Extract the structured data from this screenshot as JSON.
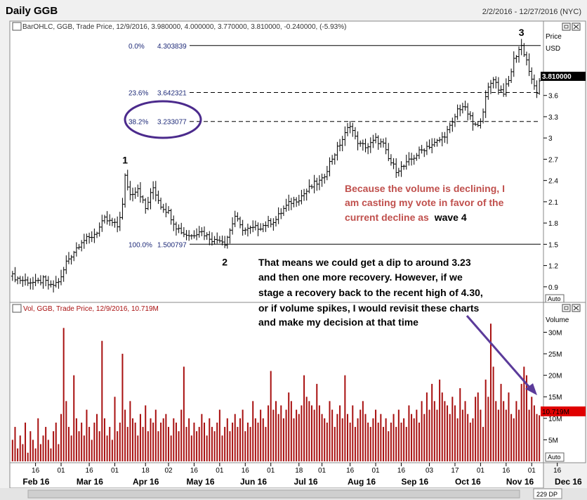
{
  "window": {
    "title": "Daily GGB",
    "date_range": "2/2/2016 - 12/27/2016 (NYC)"
  },
  "price_pane": {
    "header": "BarOHLC, GGB, Trade Price, 12/9/2016, 3.980000, 4.000000, 3.770000, 3.810000, -0.240000, (-5.93%)",
    "axis_title_1": "Price",
    "axis_title_2": "USD",
    "last_price_label": "3.810000",
    "auto_label": "Auto"
  },
  "volume_pane": {
    "header": "Vol, GGB, Trade Price, 12/9/2016, 10.719M",
    "axis_title": "Volume",
    "last_volume_label": "10.719M",
    "auto_label": "Auto"
  },
  "footer": {
    "zoom_label": "229 DP"
  },
  "annotations": {
    "wave_1": "1",
    "wave_2": "2",
    "wave_3": "3",
    "red_text": [
      "Because the volume is declining, I",
      "am casting my vote in favor of the",
      "current decline as"
    ],
    "red_text_tail": "wave 4",
    "black_text": [
      "That means we could get a dip to around 3.23",
      "and then one more recovery. However, if we",
      "stage a recovery back to the recent high of 4.30,",
      "or if volume spikes, I would revisit these charts",
      "and make my decision at that time"
    ]
  },
  "colors": {
    "bar": "#a81010",
    "fib": "#1e2a78",
    "circle": "#4b2a8c",
    "annotation_red": "#c0504d",
    "arrow": "#5b3b9a",
    "last_price_bg": "#000000",
    "last_volume_bg": "#e00000"
  },
  "chart_data": [
    {
      "type": "ohlc",
      "title": "Daily GGB",
      "x_unit": "day index (0 = Feb 2 2016)",
      "ylim": [
        0.7,
        4.5
      ],
      "y_ticks": [
        0.9,
        1.2,
        1.5,
        1.8,
        2.1,
        2.4,
        2.7,
        3,
        3.3,
        3.6,
        3.9
      ],
      "fibonacci_levels": [
        {
          "label": "0.0%",
          "value": "4.303839",
          "y": 4.303839
        },
        {
          "label": "23.6%",
          "value": "3.642321",
          "y": 3.642321
        },
        {
          "label": "38.2%",
          "value": "3.233077",
          "y": 3.233077
        },
        {
          "label": "100.0%",
          "value": "1.500797",
          "y": 1.500797
        }
      ],
      "wave_points": [
        {
          "label": "1",
          "x": 44,
          "y": 2.5
        },
        {
          "label": "2",
          "x": 83,
          "y": 1.5
        },
        {
          "label": "3",
          "x": 199,
          "y": 4.3
        }
      ],
      "price_anchors": [
        [
          0,
          1.05
        ],
        [
          3,
          1.0
        ],
        [
          6,
          0.98
        ],
        [
          9,
          0.95
        ],
        [
          12,
          1.0
        ],
        [
          15,
          0.9
        ],
        [
          17,
          0.95
        ],
        [
          19,
          1.02
        ],
        [
          21,
          1.25
        ],
        [
          24,
          1.4
        ],
        [
          27,
          1.55
        ],
        [
          30,
          1.58
        ],
        [
          33,
          1.68
        ],
        [
          36,
          1.85
        ],
        [
          39,
          1.8
        ],
        [
          41,
          1.75
        ],
        [
          43,
          2.05
        ],
        [
          44,
          2.45
        ],
        [
          46,
          2.2
        ],
        [
          49,
          2.3
        ],
        [
          52,
          2.0
        ],
        [
          55,
          2.3
        ],
        [
          58,
          2.05
        ],
        [
          61,
          1.95
        ],
        [
          64,
          1.75
        ],
        [
          67,
          1.65
        ],
        [
          70,
          1.62
        ],
        [
          73,
          1.7
        ],
        [
          76,
          1.62
        ],
        [
          79,
          1.55
        ],
        [
          81,
          1.58
        ],
        [
          83,
          1.52
        ],
        [
          85,
          1.7
        ],
        [
          87,
          1.9
        ],
        [
          89,
          1.75
        ],
        [
          91,
          1.7
        ],
        [
          94,
          1.72
        ],
        [
          97,
          1.75
        ],
        [
          100,
          1.8
        ],
        [
          103,
          1.85
        ],
        [
          106,
          2.0
        ],
        [
          109,
          2.1
        ],
        [
          112,
          2.15
        ],
        [
          115,
          2.25
        ],
        [
          118,
          2.35
        ],
        [
          121,
          2.4
        ],
        [
          124,
          2.65
        ],
        [
          127,
          2.85
        ],
        [
          130,
          3.05
        ],
        [
          132,
          3.2
        ],
        [
          134,
          3.0
        ],
        [
          136,
          2.9
        ],
        [
          139,
          2.88
        ],
        [
          142,
          2.98
        ],
        [
          145,
          2.9
        ],
        [
          147,
          2.7
        ],
        [
          150,
          2.55
        ],
        [
          153,
          2.6
        ],
        [
          156,
          2.7
        ],
        [
          159,
          2.8
        ],
        [
          162,
          2.88
        ],
        [
          165,
          2.92
        ],
        [
          168,
          3.0
        ],
        [
          170,
          3.1
        ],
        [
          172,
          3.2
        ],
        [
          174,
          3.4
        ],
        [
          176,
          3.45
        ],
        [
          178,
          3.35
        ],
        [
          180,
          3.2
        ],
        [
          182,
          3.15
        ],
        [
          184,
          3.4
        ],
        [
          186,
          3.7
        ],
        [
          188,
          3.85
        ],
        [
          190,
          3.7
        ],
        [
          192,
          3.65
        ],
        [
          194,
          3.8
        ],
        [
          196,
          4.1
        ],
        [
          198,
          4.25
        ],
        [
          199,
          4.3
        ],
        [
          201,
          4.1
        ],
        [
          203,
          3.8
        ],
        [
          205,
          3.65
        ],
        [
          207,
          3.9
        ],
        [
          208,
          4.0
        ],
        [
          209,
          3.81
        ]
      ],
      "x_ticks": [
        {
          "label": "16",
          "x": 9
        },
        {
          "label": "01",
          "x": 19
        },
        {
          "label": "16",
          "x": 30
        },
        {
          "label": "01",
          "x": 40
        },
        {
          "label": "18",
          "x": 52
        },
        {
          "label": "02",
          "x": 61
        },
        {
          "label": "16",
          "x": 71
        },
        {
          "label": "01",
          "x": 81
        },
        {
          "label": "16",
          "x": 91
        },
        {
          "label": "01",
          "x": 101
        },
        {
          "label": "18",
          "x": 112
        },
        {
          "label": "01",
          "x": 121
        },
        {
          "label": "16",
          "x": 132
        },
        {
          "label": "01",
          "x": 142
        },
        {
          "label": "16",
          "x": 152
        },
        {
          "label": "03",
          "x": 163
        },
        {
          "label": "17",
          "x": 173
        },
        {
          "label": "01",
          "x": 183
        },
        {
          "label": "16",
          "x": 193
        },
        {
          "label": "01",
          "x": 203
        },
        {
          "label": "16",
          "x": 213
        }
      ],
      "month_labels": [
        {
          "label": "Feb 16",
          "x": 4
        },
        {
          "label": "Mar 16",
          "x": 25
        },
        {
          "label": "Apr 16",
          "x": 47
        },
        {
          "label": "May 16",
          "x": 68
        },
        {
          "label": "Jun 16",
          "x": 89
        },
        {
          "label": "Jul 16",
          "x": 110
        },
        {
          "label": "Aug 16",
          "x": 131
        },
        {
          "label": "Sep 16",
          "x": 152
        },
        {
          "label": "Oct 16",
          "x": 173
        },
        {
          "label": "Nov 16",
          "x": 193
        },
        {
          "label": "Dec 16",
          "x": 212
        }
      ]
    },
    {
      "type": "bar",
      "title": "Vol, GGB",
      "ylim": [
        0,
        34
      ],
      "y_unit": "M",
      "y_ticks": [
        {
          "label": "5M",
          "value": 5
        },
        {
          "label": "10M",
          "value": 10
        },
        {
          "label": "15M",
          "value": 15
        },
        {
          "label": "20M",
          "value": 20
        },
        {
          "label": "25M",
          "value": 25
        },
        {
          "label": "30M",
          "value": 30
        }
      ],
      "values": [
        5,
        8,
        3,
        6,
        4,
        9,
        2,
        7,
        5,
        3,
        10,
        4,
        6,
        8,
        5,
        3,
        7,
        9,
        4,
        11,
        31,
        14,
        8,
        6,
        20,
        10,
        7,
        9,
        6,
        12,
        8,
        5,
        9,
        11,
        7,
        28,
        10,
        6,
        8,
        5,
        15,
        7,
        9,
        25,
        12,
        8,
        14,
        10,
        9,
        6,
        11,
        8,
        13,
        7,
        10,
        9,
        12,
        7,
        9,
        10,
        11,
        8,
        6,
        10,
        9,
        7,
        12,
        22,
        8,
        10,
        6,
        9,
        7,
        8,
        11,
        9,
        6,
        10,
        8,
        7,
        9,
        12,
        6,
        8,
        10,
        7,
        9,
        11,
        8,
        10,
        12,
        7,
        9,
        8,
        14,
        10,
        9,
        12,
        10,
        8,
        13,
        21,
        12,
        14,
        11,
        13,
        10,
        12,
        16,
        14,
        10,
        12,
        11,
        13,
        20,
        15,
        14,
        13,
        12,
        18,
        13,
        11,
        10,
        9,
        14,
        12,
        8,
        11,
        13,
        10,
        20,
        11,
        9,
        13,
        8,
        10,
        12,
        14,
        11,
        9,
        8,
        10,
        12,
        9,
        11,
        8,
        10,
        7,
        9,
        11,
        8,
        12,
        9,
        10,
        8,
        13,
        11,
        10,
        12,
        9,
        14,
        11,
        16,
        12,
        18,
        14,
        12,
        19,
        16,
        14,
        13,
        11,
        15,
        13,
        10,
        17,
        12,
        14,
        11,
        9,
        10,
        15,
        16,
        12,
        8,
        19,
        15,
        32,
        22,
        14,
        12,
        18,
        14,
        12,
        16,
        11,
        10,
        14,
        12,
        18,
        22,
        20,
        12,
        15,
        13,
        11,
        10.719
      ]
    }
  ]
}
